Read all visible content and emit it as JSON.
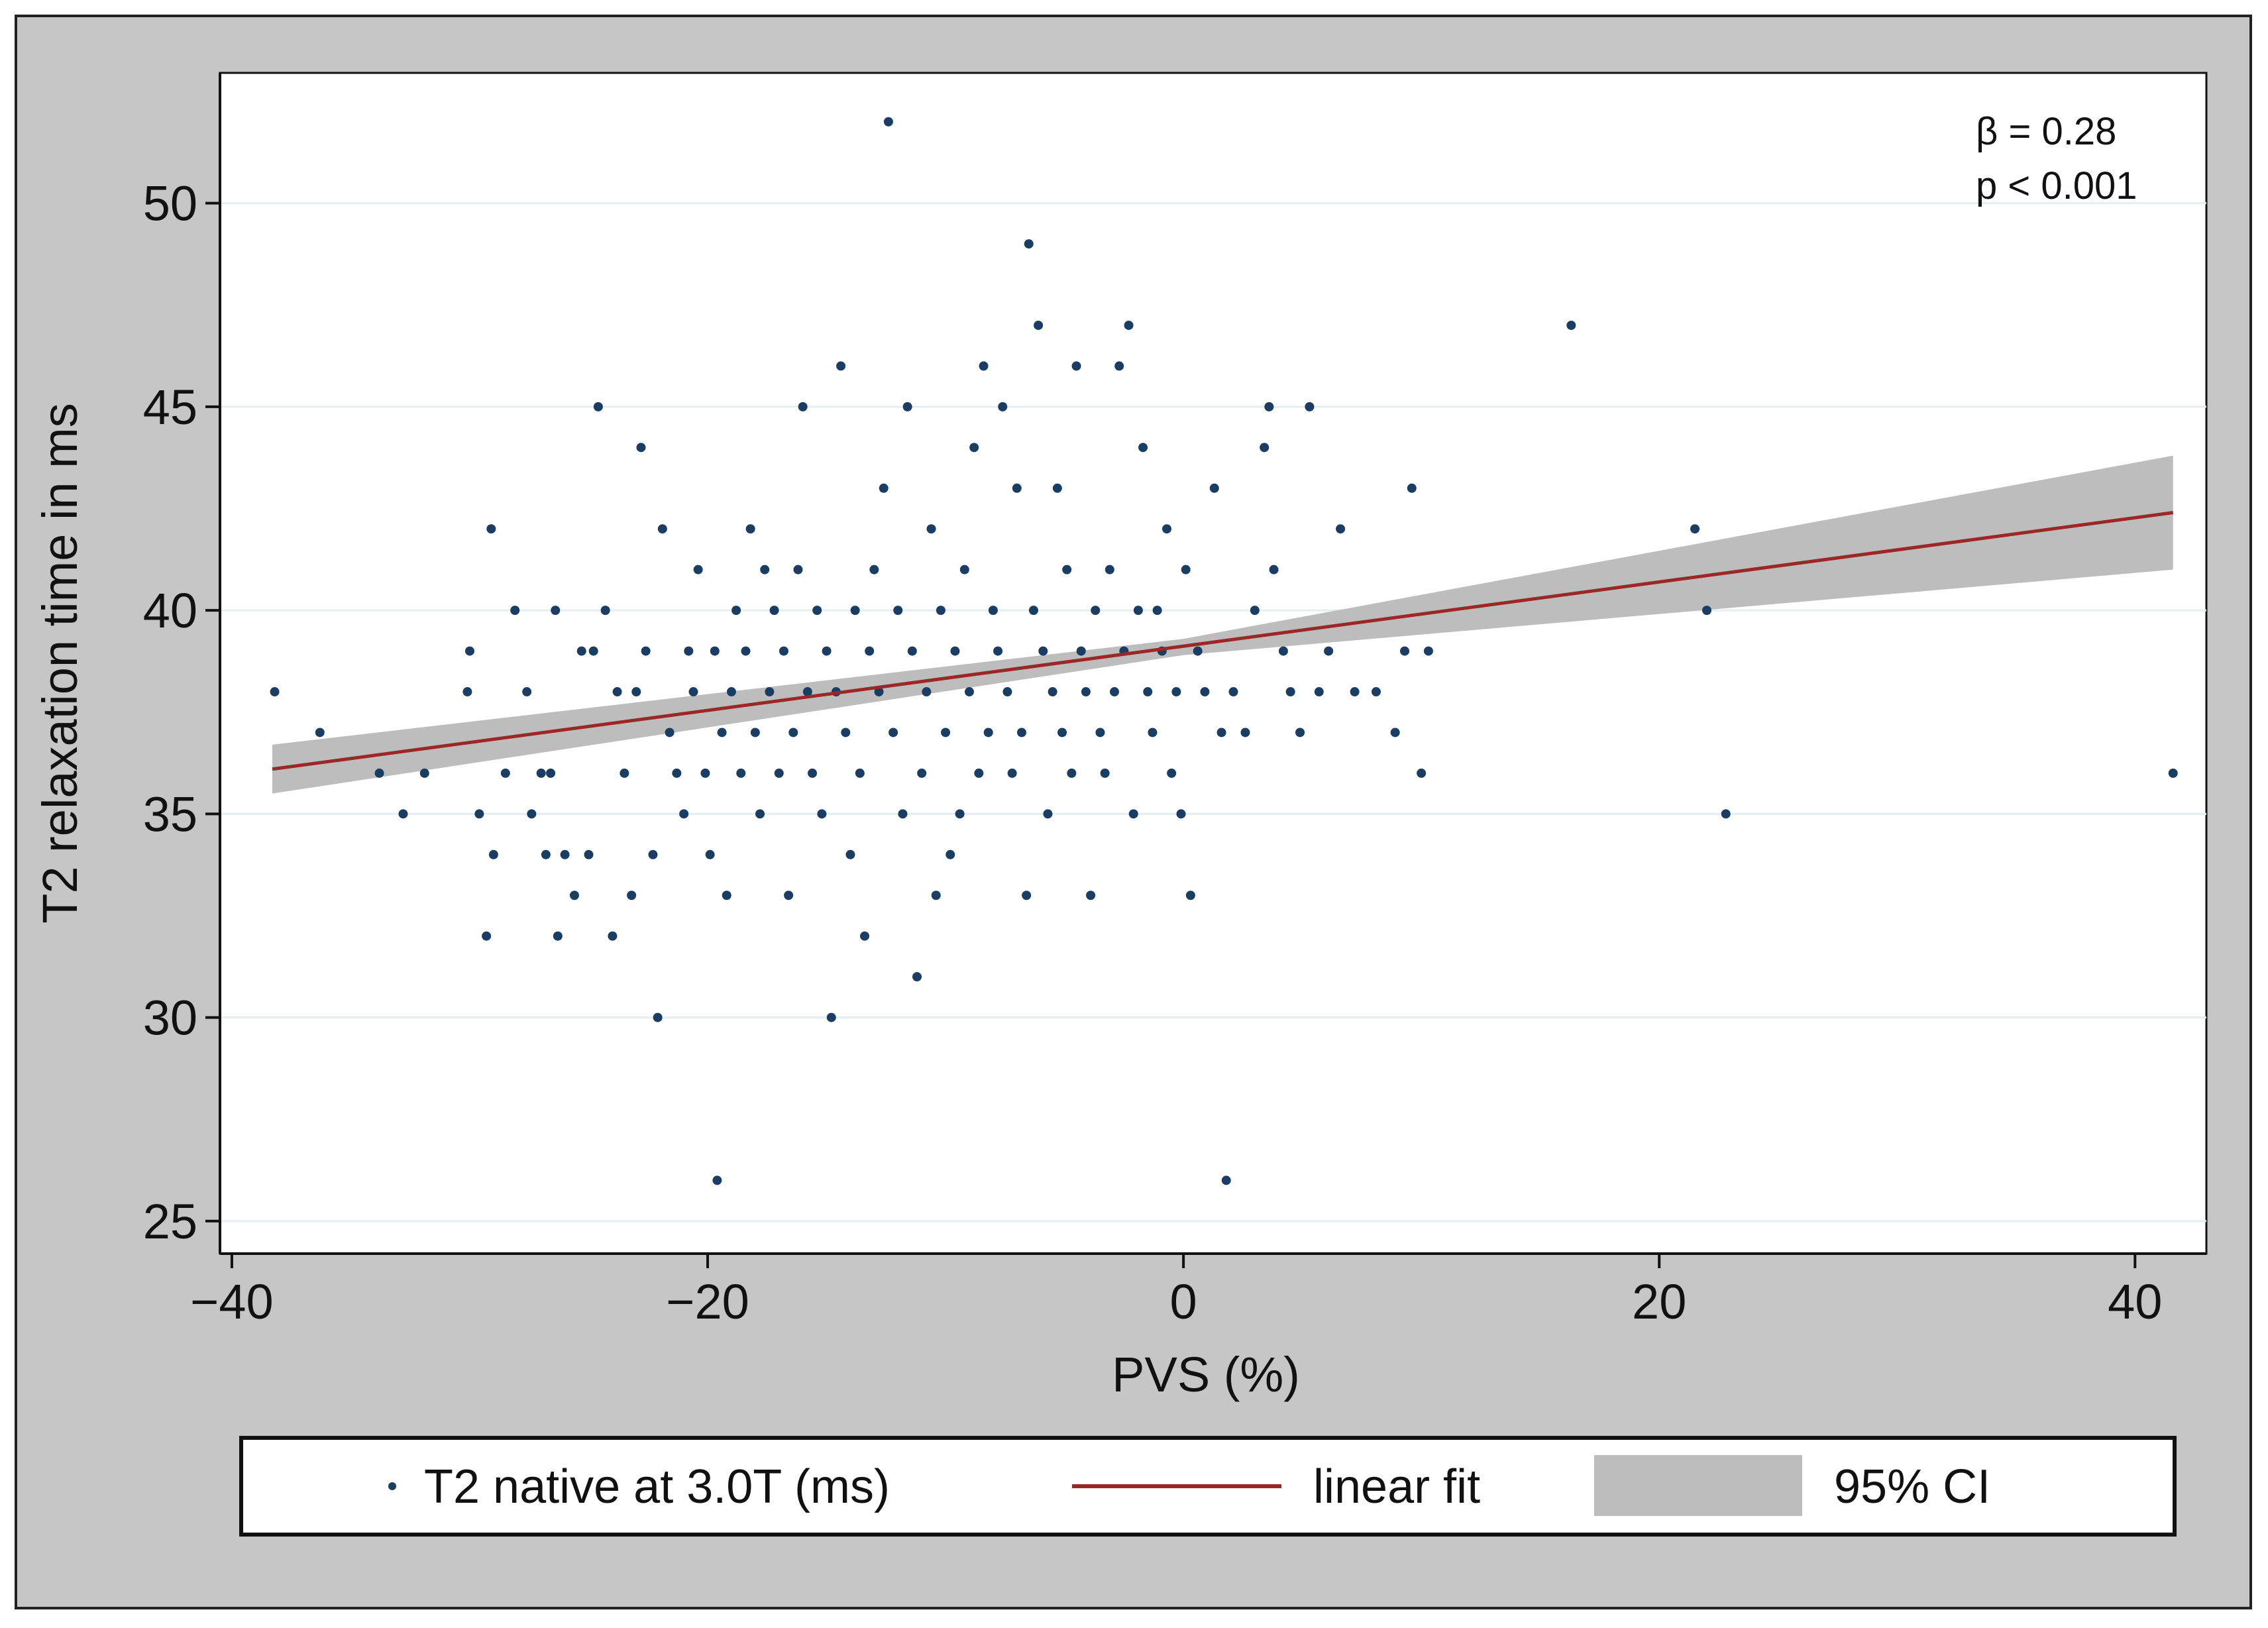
{
  "chart_data": {
    "type": "scatter",
    "xlabel": "PVS (%)",
    "ylabel": "T2 relaxation time in ms",
    "xlim": [
      -40.5,
      43
    ],
    "ylim": [
      24.2,
      53.2
    ],
    "xticks": [
      -40,
      -20,
      0,
      20,
      40
    ],
    "yticks": [
      25,
      30,
      35,
      40,
      45,
      50
    ],
    "xtick_labels": [
      "−40",
      "−20",
      "0",
      "20",
      "40"
    ],
    "ytick_labels": [
      "25",
      "30",
      "35",
      "40",
      "45",
      "50"
    ],
    "grid": true,
    "annotation": [
      "β = 0.28",
      "p < 0.001"
    ],
    "legend": {
      "position": "bottom",
      "entries": [
        {
          "label": "T2 native at 3.0T (ms)",
          "kind": "marker"
        },
        {
          "label": "linear fit",
          "kind": "line"
        },
        {
          "label": "95% CI",
          "kind": "area"
        }
      ]
    },
    "colors": {
      "points": "#1a3d63",
      "fit": "#9b2727",
      "ci": "#bdbdbd",
      "grid": "#e5eef3",
      "frame": "#c6c6c6"
    },
    "series": [
      {
        "name": "T2 native at 3.0T (ms)",
        "type": "scatter",
        "points": [
          [
            -38.2,
            38
          ],
          [
            -36.3,
            37
          ],
          [
            -33.8,
            36
          ],
          [
            -32.8,
            35
          ],
          [
            -31.9,
            36
          ],
          [
            -30.1,
            38
          ],
          [
            -30.0,
            39
          ],
          [
            -29.6,
            35
          ],
          [
            -29.3,
            32
          ],
          [
            -29.1,
            42
          ],
          [
            -29.0,
            34
          ],
          [
            -28.5,
            36
          ],
          [
            -28.1,
            40
          ],
          [
            -27.6,
            38
          ],
          [
            -27.4,
            35
          ],
          [
            -27.0,
            36
          ],
          [
            -26.8,
            34
          ],
          [
            -26.6,
            36
          ],
          [
            -26.4,
            40
          ],
          [
            -26.3,
            32
          ],
          [
            -26.0,
            34
          ],
          [
            -25.6,
            33
          ],
          [
            -25.3,
            39
          ],
          [
            -25.0,
            34
          ],
          [
            -24.8,
            39
          ],
          [
            -24.6,
            45
          ],
          [
            -24.3,
            40
          ],
          [
            -24.0,
            32
          ],
          [
            -23.8,
            38
          ],
          [
            -23.5,
            36
          ],
          [
            -23.2,
            33
          ],
          [
            -23.0,
            38
          ],
          [
            -22.8,
            44
          ],
          [
            -22.6,
            39
          ],
          [
            -22.3,
            34
          ],
          [
            -22.1,
            30
          ],
          [
            -21.9,
            42
          ],
          [
            -21.6,
            37
          ],
          [
            -21.3,
            36
          ],
          [
            -21.0,
            35
          ],
          [
            -20.8,
            39
          ],
          [
            -20.6,
            38
          ],
          [
            -20.4,
            41
          ],
          [
            -20.1,
            36
          ],
          [
            -19.9,
            34
          ],
          [
            -19.7,
            39
          ],
          [
            -19.6,
            26
          ],
          [
            -19.4,
            37
          ],
          [
            -19.2,
            33
          ],
          [
            -19.0,
            38
          ],
          [
            -18.8,
            40
          ],
          [
            -18.6,
            36
          ],
          [
            -18.4,
            39
          ],
          [
            -18.2,
            42
          ],
          [
            -18.0,
            37
          ],
          [
            -17.8,
            35
          ],
          [
            -17.6,
            41
          ],
          [
            -17.4,
            38
          ],
          [
            -17.2,
            40
          ],
          [
            -17.0,
            36
          ],
          [
            -16.8,
            39
          ],
          [
            -16.6,
            33
          ],
          [
            -16.4,
            37
          ],
          [
            -16.2,
            41
          ],
          [
            -16.0,
            45
          ],
          [
            -15.8,
            38
          ],
          [
            -15.6,
            36
          ],
          [
            -15.4,
            40
          ],
          [
            -15.2,
            35
          ],
          [
            -15.0,
            39
          ],
          [
            -14.8,
            30
          ],
          [
            -14.6,
            38
          ],
          [
            -14.4,
            46
          ],
          [
            -14.2,
            37
          ],
          [
            -14.0,
            34
          ],
          [
            -13.8,
            40
          ],
          [
            -13.6,
            36
          ],
          [
            -13.4,
            32
          ],
          [
            -13.2,
            39
          ],
          [
            -13.0,
            41
          ],
          [
            -12.8,
            38
          ],
          [
            -12.6,
            43
          ],
          [
            -12.4,
            52
          ],
          [
            -12.2,
            37
          ],
          [
            -12.0,
            40
          ],
          [
            -11.8,
            35
          ],
          [
            -11.6,
            45
          ],
          [
            -11.4,
            39
          ],
          [
            -11.2,
            31
          ],
          [
            -11.0,
            36
          ],
          [
            -10.8,
            38
          ],
          [
            -10.6,
            42
          ],
          [
            -10.4,
            33
          ],
          [
            -10.2,
            40
          ],
          [
            -10.0,
            37
          ],
          [
            -9.8,
            34
          ],
          [
            -9.6,
            39
          ],
          [
            -9.4,
            35
          ],
          [
            -9.2,
            41
          ],
          [
            -9.0,
            38
          ],
          [
            -8.8,
            44
          ],
          [
            -8.6,
            36
          ],
          [
            -8.4,
            46
          ],
          [
            -8.2,
            37
          ],
          [
            -8.0,
            40
          ],
          [
            -7.8,
            39
          ],
          [
            -7.6,
            45
          ],
          [
            -7.4,
            38
          ],
          [
            -7.2,
            36
          ],
          [
            -7.0,
            43
          ],
          [
            -6.8,
            37
          ],
          [
            -6.6,
            33
          ],
          [
            -6.5,
            49
          ],
          [
            -6.3,
            40
          ],
          [
            -6.1,
            47
          ],
          [
            -5.9,
            39
          ],
          [
            -5.7,
            35
          ],
          [
            -5.5,
            38
          ],
          [
            -5.3,
            43
          ],
          [
            -5.1,
            37
          ],
          [
            -4.9,
            41
          ],
          [
            -4.7,
            36
          ],
          [
            -4.5,
            46
          ],
          [
            -4.3,
            39
          ],
          [
            -4.1,
            38
          ],
          [
            -3.9,
            33
          ],
          [
            -3.7,
            40
          ],
          [
            -3.5,
            37
          ],
          [
            -3.3,
            36
          ],
          [
            -3.1,
            41
          ],
          [
            -2.9,
            38
          ],
          [
            -2.7,
            46
          ],
          [
            -2.5,
            39
          ],
          [
            -2.3,
            47
          ],
          [
            -2.1,
            35
          ],
          [
            -1.9,
            40
          ],
          [
            -1.7,
            44
          ],
          [
            -1.5,
            38
          ],
          [
            -1.3,
            37
          ],
          [
            -1.1,
            40
          ],
          [
            -0.9,
            39
          ],
          [
            -0.7,
            42
          ],
          [
            -0.5,
            36
          ],
          [
            -0.3,
            38
          ],
          [
            -0.1,
            35
          ],
          [
            0.1,
            41
          ],
          [
            0.3,
            33
          ],
          [
            0.6,
            39
          ],
          [
            0.9,
            38
          ],
          [
            1.3,
            43
          ],
          [
            1.6,
            37
          ],
          [
            1.8,
            26
          ],
          [
            2.1,
            38
          ],
          [
            2.6,
            37
          ],
          [
            3.0,
            40
          ],
          [
            3.4,
            44
          ],
          [
            3.6,
            45
          ],
          [
            3.8,
            41
          ],
          [
            4.2,
            39
          ],
          [
            4.5,
            38
          ],
          [
            4.9,
            37
          ],
          [
            5.3,
            45
          ],
          [
            5.7,
            38
          ],
          [
            6.1,
            39
          ],
          [
            6.6,
            42
          ],
          [
            7.2,
            38
          ],
          [
            8.1,
            38
          ],
          [
            8.9,
            37
          ],
          [
            9.3,
            39
          ],
          [
            9.6,
            43
          ],
          [
            10.0,
            36
          ],
          [
            10.3,
            39
          ],
          [
            16.3,
            47
          ],
          [
            21.5,
            42
          ],
          [
            22.0,
            40
          ],
          [
            22.8,
            35
          ],
          [
            41.6,
            36
          ]
        ]
      },
      {
        "name": "linear fit",
        "type": "line",
        "x": [
          -38.3,
          41.6
        ],
        "y": [
          36.1,
          42.4
        ]
      },
      {
        "name": "95% CI",
        "type": "band",
        "x": [
          -38.3,
          0,
          41.6
        ],
        "lower": [
          35.5,
          38.9,
          41.0
        ],
        "upper": [
          36.7,
          39.3,
          43.8
        ]
      }
    ]
  }
}
